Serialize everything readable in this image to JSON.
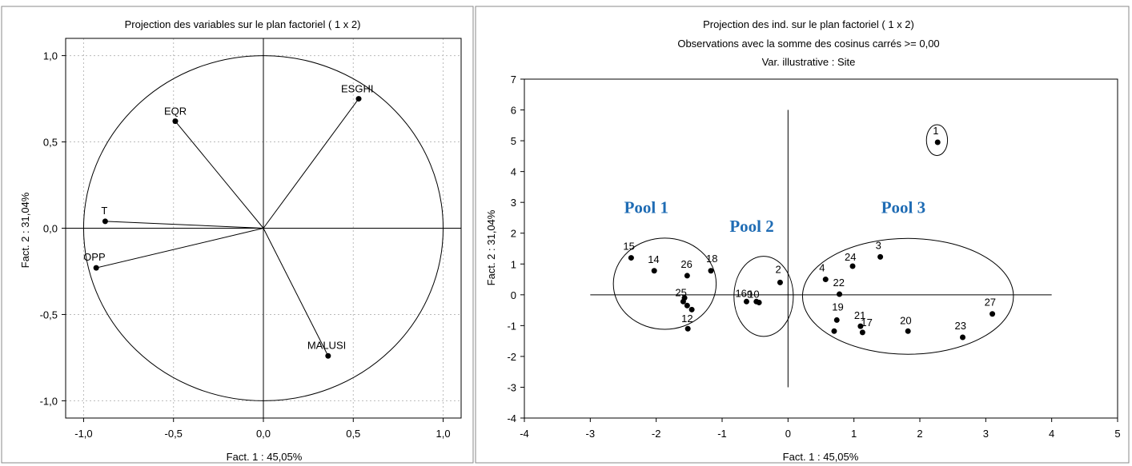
{
  "chart_data": [
    {
      "type": "scatter",
      "title": "Projection des variables sur le plan factoriel (  1 x   2)",
      "xlabel": "Fact. 1   : 45,05%",
      "ylabel": "Fact. 2 : 31,04%",
      "xlim": [
        -1.1,
        1.1
      ],
      "ylim": [
        -1.1,
        1.1
      ],
      "xticks": [
        "-1,0",
        "-0,5",
        "0,0",
        "0,5",
        "1,0"
      ],
      "xtick_values": [
        -1.0,
        -0.5,
        0.0,
        0.5,
        1.0
      ],
      "yticks": [
        "1,0",
        "0,5",
        "0,0",
        "-0,5",
        "-1,0"
      ],
      "ytick_values": [
        1.0,
        0.5,
        0.0,
        -0.5,
        -1.0
      ],
      "grid": true,
      "unit_circle": true,
      "points": [
        {
          "label": "ESGHI",
          "x": 0.53,
          "y": 0.75
        },
        {
          "label": "EQR",
          "x": -0.49,
          "y": 0.62
        },
        {
          "label": "T",
          "x": -0.88,
          "y": 0.04
        },
        {
          "label": "OPP",
          "x": -0.93,
          "y": -0.23
        },
        {
          "label": "MALUSI",
          "x": 0.36,
          "y": -0.74
        }
      ]
    },
    {
      "type": "scatter",
      "title": "Projection des ind. sur le plan factoriel (  1 x   2)",
      "subtitle": "Observations avec la somme des cosinus carrés >=  0,00",
      "subtitle2": "Var. illustrative :  Site",
      "xlabel": "Fact. 1   : 45,05%",
      "ylabel": "Fact. 2 : 31,04%",
      "xlim": [
        -4,
        5
      ],
      "ylim": [
        -4,
        7
      ],
      "xticks": [
        "-4",
        "-3",
        "-2",
        "-1",
        "0",
        "1",
        "2",
        "3",
        "4",
        "5"
      ],
      "xtick_values": [
        -4,
        -3,
        -2,
        -1,
        0,
        1,
        2,
        3,
        4,
        5
      ],
      "yticks": [
        "7",
        "6",
        "5",
        "4",
        "3",
        "2",
        "1",
        "0",
        "-1",
        "-2",
        "-3",
        "-4"
      ],
      "ytick_values": [
        7,
        6,
        5,
        4,
        3,
        2,
        1,
        0,
        -1,
        -2,
        -3,
        -4
      ],
      "axes_cross": {
        "x_from": -3,
        "x_to": 4,
        "y_from": -3,
        "y_to": 6
      },
      "points": [
        {
          "label": "1",
          "x": 2.27,
          "y": 4.95
        },
        {
          "label": "2",
          "x": -0.12,
          "y": 0.4
        },
        {
          "label": "3",
          "x": 1.4,
          "y": 1.23
        },
        {
          "label": "4",
          "x": 0.57,
          "y": 0.5
        },
        {
          "label": "9",
          "x": -0.48,
          "y": -0.22
        },
        {
          "label": "10",
          "x": -0.44,
          "y": -0.25
        },
        {
          "label": "12",
          "x": -1.52,
          "y": -1.1
        },
        {
          "label": "14",
          "x": -2.03,
          "y": 0.78
        },
        {
          "label": "15",
          "x": -2.38,
          "y": 1.2
        },
        {
          "label": "16",
          "x": -0.63,
          "y": -0.22
        },
        {
          "label": "17",
          "x": 1.13,
          "y": -1.22
        },
        {
          "label": "18",
          "x": -1.17,
          "y": 0.78
        },
        {
          "label": "19",
          "x": 0.74,
          "y": -0.82
        },
        {
          "label": "20",
          "x": 1.82,
          "y": -1.18
        },
        {
          "label": "21",
          "x": 1.1,
          "y": -1.02
        },
        {
          "label": "22",
          "x": 0.78,
          "y": 0.02
        },
        {
          "label": "23",
          "x": 2.65,
          "y": -1.38
        },
        {
          "label": "24",
          "x": 0.98,
          "y": 0.93
        },
        {
          "label": "25",
          "x": -1.59,
          "y": -0.22
        },
        {
          "label": "26",
          "x": -1.53,
          "y": 0.62
        },
        {
          "label": "27",
          "x": 3.1,
          "y": -0.62
        },
        {
          "label": "",
          "x": -1.57,
          "y": -0.1
        },
        {
          "label": "",
          "x": -1.53,
          "y": -0.35
        },
        {
          "label": "",
          "x": -1.46,
          "y": -0.48
        },
        {
          "label": "",
          "x": 0.7,
          "y": -1.18
        }
      ],
      "groups": [
        {
          "label": "Pool 1",
          "cx": -1.87,
          "cy": 0.36,
          "rx": 0.78,
          "ry": 1.48
        },
        {
          "label": "Pool 2",
          "cx": -0.37,
          "cy": -0.05,
          "rx": 0.45,
          "ry": 1.3
        },
        {
          "label": "Pool 3",
          "cx": 1.82,
          "cy": -0.05,
          "rx": 1.6,
          "ry": 1.88
        },
        {
          "label": "",
          "cx": 2.26,
          "cy": 5.02,
          "rx": 0.16,
          "ry": 0.5
        }
      ]
    }
  ]
}
